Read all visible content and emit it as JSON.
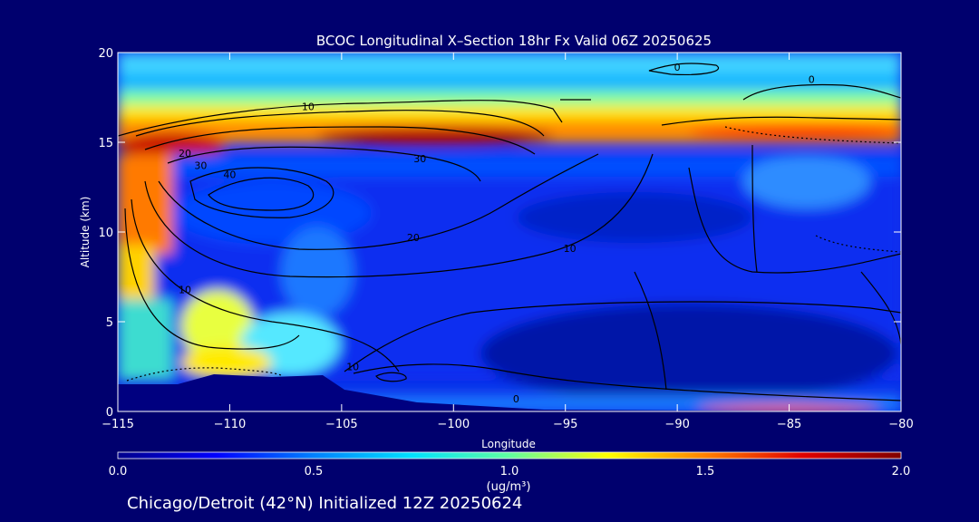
{
  "chart_data": {
    "type": "heatmap",
    "title": "BCOC Longitudinal X–Section 18hr  Fx Valid 06Z 20250625",
    "xlabel": "Longitude",
    "ylabel": "Altitude (km)",
    "xlim": [
      -115,
      -80
    ],
    "ylim": [
      0,
      20
    ],
    "x_ticks": [
      -115,
      -110,
      -105,
      -100,
      -95,
      -90,
      -85,
      -80
    ],
    "x_tick_labels": [
      "−115",
      "−110",
      "−105",
      "−100",
      "−95",
      "−90",
      "−85",
      "−80"
    ],
    "y_ticks": [
      0,
      5,
      10,
      15,
      20
    ],
    "y_tick_labels": [
      "0",
      "5",
      "10",
      "15",
      "20"
    ],
    "colorbar": {
      "min": 0.0,
      "max": 2.0,
      "tick_values": [
        0.0,
        0.5,
        1.0,
        1.5,
        2.0
      ],
      "tick_labels": [
        "0.0",
        "0.5",
        "1.0",
        "1.5",
        "2.0"
      ],
      "unit_label": "(ug/m³)",
      "colormap": "jet",
      "colors": [
        "#00008b",
        "#0000ff",
        "#0080ff",
        "#00e0ff",
        "#60ffa0",
        "#ffff00",
        "#ff8000",
        "#e00000",
        "#800000"
      ]
    },
    "contour_labels": [
      {
        "text": "0",
        "lon": -90.0,
        "alt": 19.0
      },
      {
        "text": "0",
        "lon": -84.0,
        "alt": 18.3
      },
      {
        "text": "10",
        "lon": -106.5,
        "alt": 16.8
      },
      {
        "text": "20",
        "lon": -112.0,
        "alt": 14.2
      },
      {
        "text": "30",
        "lon": -111.3,
        "alt": 13.5
      },
      {
        "text": "40",
        "lon": -110.0,
        "alt": 13.0
      },
      {
        "text": "30",
        "lon": -101.5,
        "alt": 13.9
      },
      {
        "text": "20",
        "lon": -101.8,
        "alt": 9.5
      },
      {
        "text": "10",
        "lon": -94.8,
        "alt": 8.9
      },
      {
        "text": "10",
        "lon": -112.0,
        "alt": 6.6
      },
      {
        "text": "10",
        "lon": -104.5,
        "alt": 2.3
      },
      {
        "text": "0",
        "lon": -97.2,
        "alt": 0.5
      }
    ]
  },
  "footer": "Chicago/Detroit (42°N) Initialized 12Z 20250624"
}
